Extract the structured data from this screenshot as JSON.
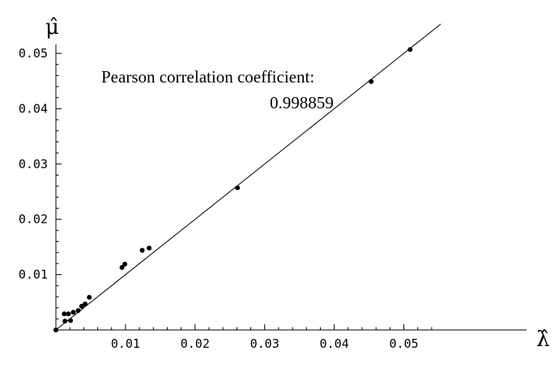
{
  "chart_data": {
    "type": "scatter",
    "xlabel": "λ̂",
    "ylabel": "μ̂",
    "xlim": [
      0,
      0.055
    ],
    "ylim": [
      0,
      0.055
    ],
    "x_ticks": [
      "0.01",
      "0.02",
      "0.03",
      "0.04",
      "0.05"
    ],
    "y_ticks": [
      "0.01",
      "0.02",
      "0.03",
      "0.04",
      "0.05"
    ],
    "grid": false,
    "annotation": {
      "label": "Pearson correlation coefficient:",
      "value": "0.998859"
    },
    "reference_line": {
      "slope": 1,
      "intercept": 0
    },
    "series": [
      {
        "points": [
          [
            0.0,
            0.0
          ],
          [
            0.0012,
            0.0029
          ],
          [
            0.0018,
            0.0029
          ],
          [
            0.0013,
            0.0016
          ],
          [
            0.0021,
            0.0017
          ],
          [
            0.0025,
            0.0032
          ],
          [
            0.0032,
            0.0035
          ],
          [
            0.0037,
            0.0043
          ],
          [
            0.0042,
            0.0047
          ],
          [
            0.0048,
            0.0059
          ],
          [
            0.0095,
            0.0113
          ],
          [
            0.0099,
            0.0119
          ],
          [
            0.0124,
            0.0144
          ],
          [
            0.0134,
            0.0148
          ],
          [
            0.0261,
            0.0257
          ],
          [
            0.0453,
            0.0449
          ],
          [
            0.0509,
            0.0507
          ]
        ]
      }
    ]
  }
}
